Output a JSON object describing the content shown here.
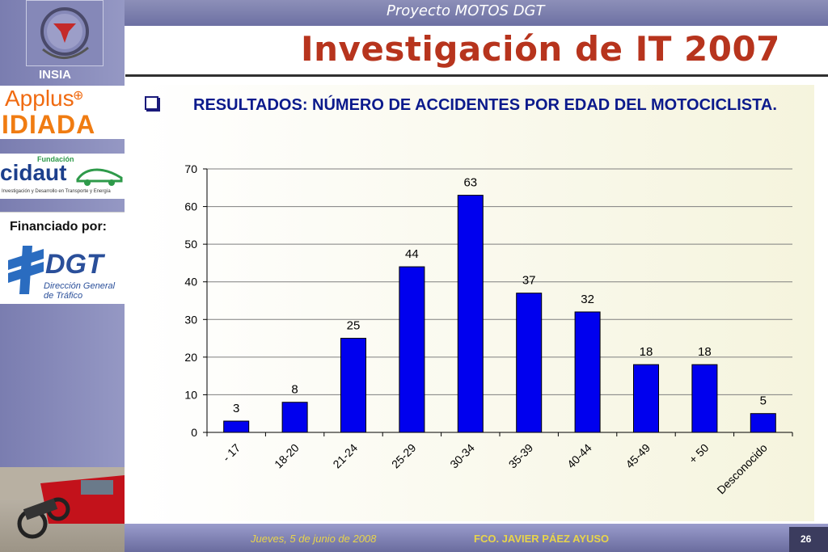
{
  "header": {
    "project": "Proyecto MOTOS DGT",
    "title": "Investigación de IT 2007"
  },
  "sidebar": {
    "insia_label": "INSIA",
    "applus_label": "Applus",
    "idiada_label": "IDIADA",
    "fundacion_label": "Fundación",
    "cidaut_label": "cidaut",
    "cidaut_sub": "Investigación y Desarrollo en Transporte y Energía",
    "financiado_label": "Financiado por:",
    "dgt_label": "DGT",
    "dgt_sub1": "Dirección General",
    "dgt_sub2": "de Tráfico"
  },
  "content": {
    "heading": "RESULTADOS: NÚMERO DE ACCIDENTES POR EDAD DEL MOTOCICLISTA."
  },
  "chart_data": {
    "type": "bar",
    "categories": [
      "- 17",
      "18-20",
      "21-24",
      "25-29",
      "30-34",
      "35-39",
      "40-44",
      "45-49",
      "+ 50",
      "Desconocido"
    ],
    "values": [
      3,
      8,
      25,
      44,
      63,
      37,
      32,
      18,
      18,
      5
    ],
    "ylim": [
      0,
      70
    ],
    "yticks": [
      0,
      10,
      20,
      30,
      40,
      50,
      60,
      70
    ],
    "grid": true,
    "bar_color": "#0000ee",
    "title": "",
    "xlabel": "",
    "ylabel": ""
  },
  "footer": {
    "date": "Jueves, 5 de junio de 2008",
    "author": "FCO. JAVIER PÁEZ AYUSO",
    "page": "26"
  }
}
